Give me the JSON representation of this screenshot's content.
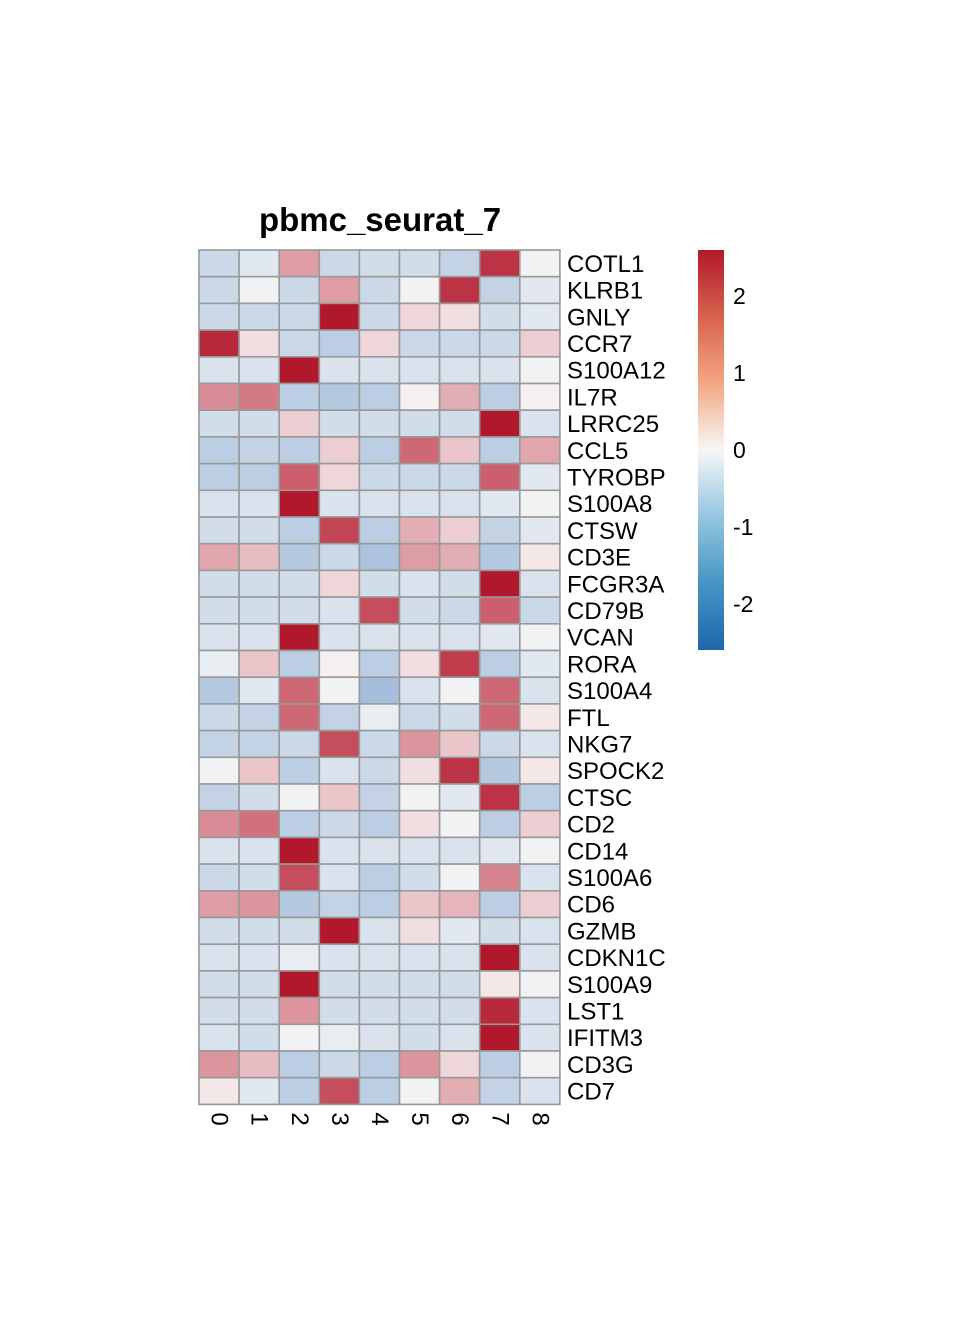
{
  "chart_data": {
    "type": "heatmap",
    "title": "pbmc_seurat_7",
    "columns": [
      "0",
      "1",
      "2",
      "3",
      "4",
      "5",
      "6",
      "7",
      "8"
    ],
    "rows": [
      "COTL1",
      "KLRB1",
      "GNLY",
      "CCR7",
      "S100A12",
      "IL7R",
      "LRRC25",
      "CCL5",
      "TYROBP",
      "S100A8",
      "CTSW",
      "CD3E",
      "FCGR3A",
      "CD79B",
      "VCAN",
      "RORA",
      "S100A4",
      "FTL",
      "NKG7",
      "SPOCK2",
      "CTSC",
      "CD2",
      "CD14",
      "S100A6",
      "CD6",
      "GZMB",
      "CDKN1C",
      "S100A9",
      "LST1",
      "IFITM3",
      "CD3G",
      "CD7"
    ],
    "values": [
      [
        -0.6,
        -0.3,
        1.1,
        -0.6,
        -0.5,
        -0.5,
        -0.7,
        2.3,
        -0.1
      ],
      [
        -0.6,
        -0.1,
        -0.6,
        1.1,
        -0.6,
        -0.1,
        2.3,
        -0.7,
        -0.3
      ],
      [
        -0.6,
        -0.6,
        -0.6,
        2.6,
        -0.6,
        0.4,
        0.3,
        -0.5,
        -0.3
      ],
      [
        2.4,
        0.3,
        -0.6,
        -0.8,
        0.4,
        -0.6,
        -0.6,
        -0.6,
        0.5
      ],
      [
        -0.4,
        -0.4,
        2.6,
        -0.4,
        -0.4,
        -0.4,
        -0.4,
        -0.4,
        -0.1
      ],
      [
        1.3,
        1.5,
        -0.8,
        -0.9,
        -0.8,
        0.1,
        0.9,
        -0.8,
        0.1
      ],
      [
        -0.5,
        -0.5,
        0.5,
        -0.5,
        -0.5,
        -0.5,
        -0.5,
        2.6,
        -0.4
      ],
      [
        -0.8,
        -0.7,
        -0.8,
        0.5,
        -0.8,
        1.7,
        0.6,
        -0.8,
        1.0
      ],
      [
        -0.8,
        -0.8,
        1.8,
        0.4,
        -0.6,
        -0.6,
        -0.6,
        1.8,
        -0.3
      ],
      [
        -0.4,
        -0.4,
        2.6,
        -0.4,
        -0.4,
        -0.4,
        -0.4,
        -0.3,
        -0.1
      ],
      [
        -0.5,
        -0.5,
        -0.8,
        2.1,
        -0.8,
        0.9,
        0.5,
        -0.7,
        -0.3
      ],
      [
        1.0,
        0.7,
        -0.9,
        -0.6,
        -1.0,
        1.1,
        0.9,
        -0.9,
        0.2
      ],
      [
        -0.5,
        -0.5,
        -0.5,
        0.4,
        -0.5,
        -0.4,
        -0.5,
        2.6,
        -0.4
      ],
      [
        -0.5,
        -0.5,
        -0.5,
        -0.4,
        2.0,
        -0.5,
        -0.6,
        1.8,
        -0.6
      ],
      [
        -0.4,
        -0.4,
        2.6,
        -0.4,
        -0.4,
        -0.4,
        -0.4,
        -0.3,
        -0.1
      ],
      [
        -0.2,
        0.6,
        -0.8,
        0.1,
        -0.8,
        0.3,
        2.2,
        -0.8,
        -0.3
      ],
      [
        -0.9,
        -0.3,
        1.7,
        -0.1,
        -1.1,
        -0.4,
        -0.1,
        1.7,
        -0.4
      ],
      [
        -0.6,
        -0.7,
        1.7,
        -0.7,
        -0.2,
        -0.6,
        -0.5,
        1.7,
        0.2
      ],
      [
        -0.7,
        -0.7,
        -0.6,
        2.0,
        -0.6,
        1.2,
        0.6,
        -0.6,
        -0.4
      ],
      [
        -0.1,
        0.6,
        -0.8,
        -0.4,
        -0.6,
        0.3,
        2.3,
        -0.9,
        0.2
      ],
      [
        -0.7,
        -0.5,
        -0.1,
        0.6,
        -0.7,
        -0.1,
        -0.3,
        2.3,
        -0.8
      ],
      [
        1.3,
        1.6,
        -0.8,
        -0.6,
        -0.8,
        0.3,
        -0.1,
        -0.8,
        0.5
      ],
      [
        -0.4,
        -0.4,
        2.6,
        -0.4,
        -0.4,
        -0.4,
        -0.4,
        -0.3,
        -0.1
      ],
      [
        -0.6,
        -0.5,
        2.0,
        -0.4,
        -0.8,
        -0.5,
        -0.1,
        1.4,
        -0.4
      ],
      [
        1.1,
        1.2,
        -0.9,
        -0.7,
        -0.8,
        0.6,
        0.8,
        -0.8,
        0.5
      ],
      [
        -0.5,
        -0.5,
        -0.5,
        2.6,
        -0.4,
        0.3,
        -0.3,
        -0.5,
        -0.4
      ],
      [
        -0.4,
        -0.4,
        -0.2,
        -0.4,
        -0.4,
        -0.4,
        -0.4,
        2.6,
        -0.4
      ],
      [
        -0.5,
        -0.5,
        2.6,
        -0.5,
        -0.5,
        -0.5,
        -0.5,
        0.2,
        -0.1
      ],
      [
        -0.5,
        -0.5,
        1.2,
        -0.5,
        -0.5,
        -0.5,
        -0.5,
        2.4,
        -0.4
      ],
      [
        -0.4,
        -0.5,
        -0.1,
        -0.2,
        -0.4,
        -0.5,
        -0.4,
        2.6,
        -0.4
      ],
      [
        1.2,
        0.7,
        -0.8,
        -0.6,
        -0.8,
        1.2,
        0.4,
        -0.8,
        -0.1
      ],
      [
        0.2,
        -0.3,
        -0.8,
        2.0,
        -0.8,
        -0.1,
        0.9,
        -0.7,
        -0.4
      ]
    ],
    "colorbar": {
      "min": -2.6,
      "max": 2.6,
      "ticks": [
        2,
        1,
        0,
        -1,
        -2
      ],
      "tick_labels": [
        "2",
        "1",
        "0",
        "-1",
        "-2"
      ]
    },
    "colors": {
      "low": "#2166ac",
      "mid": "#f7f7f7",
      "high": "#b2182b",
      "grid": "#999999"
    },
    "grid": true,
    "legend_position": "right"
  }
}
